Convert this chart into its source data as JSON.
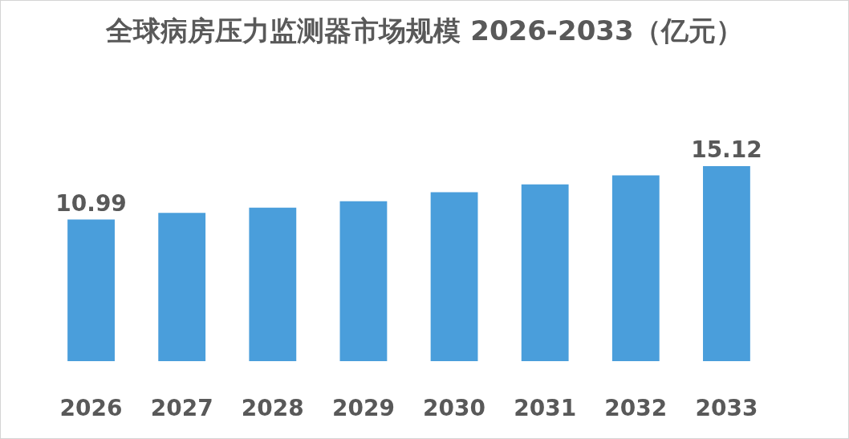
{
  "chart_data": {
    "type": "bar",
    "title": "全球病房压力监测器市场规模 2026-2033（亿元）",
    "categories": [
      "2026",
      "2027",
      "2028",
      "2029",
      "2030",
      "2031",
      "2032",
      "2033"
    ],
    "values": [
      10.99,
      11.5,
      11.9,
      12.4,
      13.1,
      13.7,
      14.4,
      15.12
    ],
    "color": "#4a9edb",
    "value_labels": [
      "10.99",
      null,
      null,
      null,
      null,
      null,
      null,
      "15.12"
    ]
  }
}
